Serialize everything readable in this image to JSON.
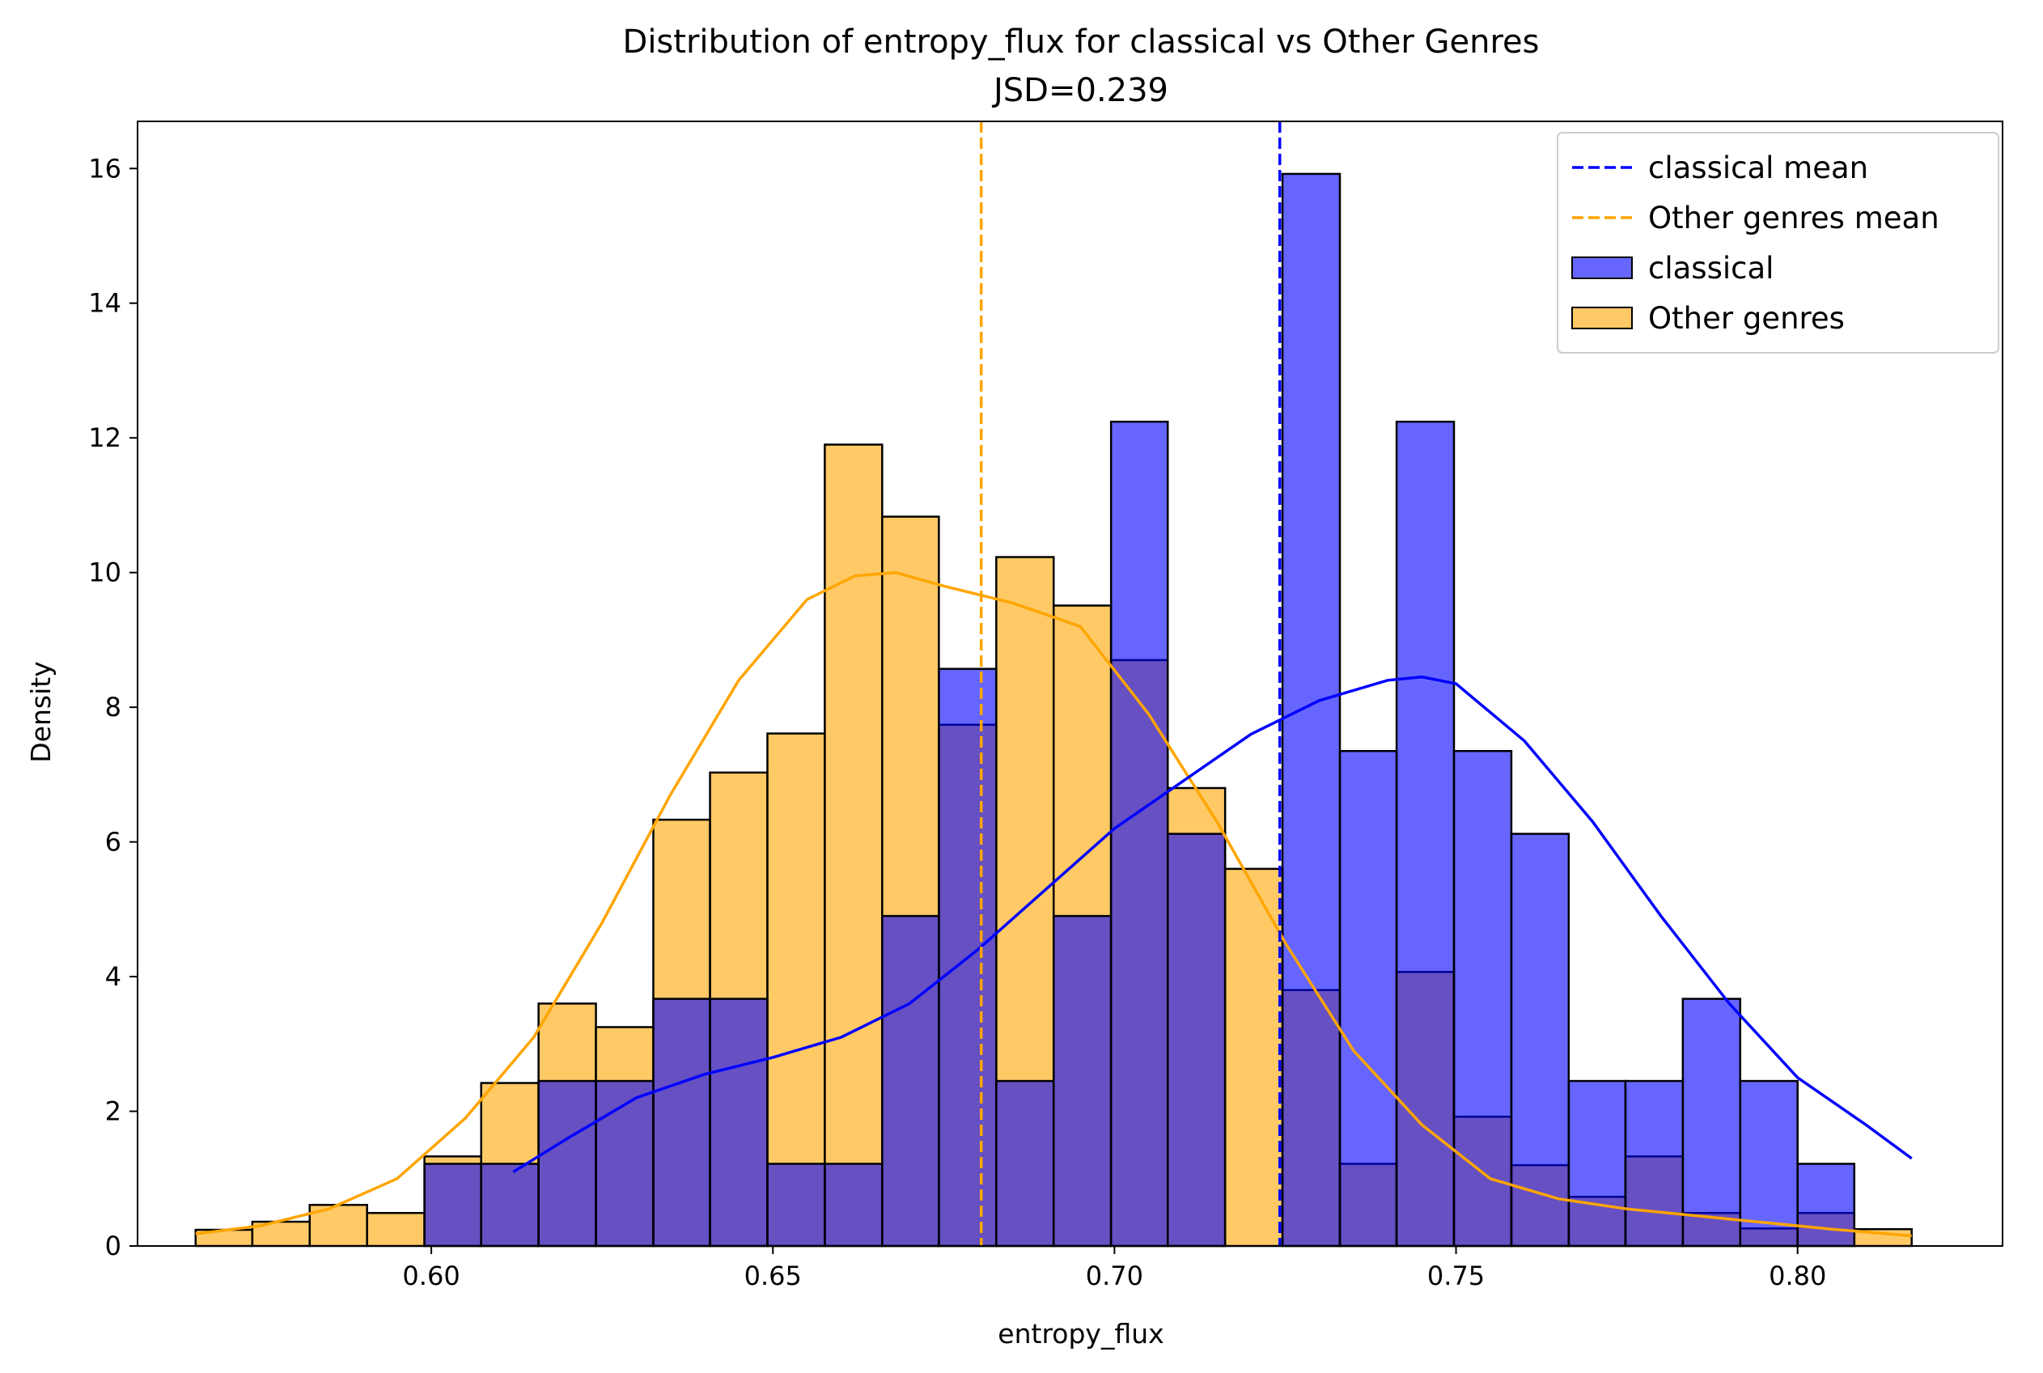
{
  "chart_data": {
    "type": "bar",
    "title": "Distribution of entropy_flux for classical vs Other Genres",
    "subtitle": "JSD=0.239",
    "xlabel": "entropy_flux",
    "ylabel": "Density",
    "xlim": [
      0.557,
      0.83
    ],
    "ylim": [
      0,
      16.7
    ],
    "xticks": [
      0.6,
      0.65,
      0.7,
      0.75,
      0.8
    ],
    "xtick_labels": [
      "0.60",
      "0.65",
      "0.70",
      "0.75",
      "0.80"
    ],
    "yticks": [
      0,
      2,
      4,
      6,
      8,
      10,
      12,
      14,
      16
    ],
    "ytick_labels": [
      "0",
      "2",
      "4",
      "6",
      "8",
      "10",
      "12",
      "14",
      "16"
    ],
    "grid": false,
    "legend_position": "top-right",
    "colors": {
      "classical": "#0000ff",
      "other": "#ffa500",
      "classical_fill": "#6666ff",
      "other_fill": "#ffc966",
      "overlap_fill": "#bf8766",
      "edge": "#000000"
    },
    "legend": [
      {
        "label": "classical mean",
        "kind": "dashed-line",
        "color": "#0000ff"
      },
      {
        "label": "Other genres mean",
        "kind": "dashed-line",
        "color": "#ffa500"
      },
      {
        "label": "classical",
        "kind": "patch",
        "color": "#6666ff"
      },
      {
        "label": "Other genres",
        "kind": "patch",
        "color": "#ffc966"
      }
    ],
    "bin_edges": [
      0.5655,
      0.5738,
      0.5822,
      0.5906,
      0.599,
      0.6073,
      0.6157,
      0.6241,
      0.6325,
      0.6408,
      0.6492,
      0.6576,
      0.666,
      0.6743,
      0.6827,
      0.6911,
      0.6995,
      0.7078,
      0.7162,
      0.7246,
      0.733,
      0.7413,
      0.7497,
      0.7581,
      0.7665,
      0.7748,
      0.7832,
      0.7916,
      0.8,
      0.8083,
      0.8167
    ],
    "series": [
      {
        "name": "classical",
        "values": [
          0,
          0,
          0,
          0,
          1.22,
          1.22,
          2.45,
          2.45,
          3.67,
          3.67,
          1.22,
          1.22,
          4.9,
          8.57,
          2.45,
          4.9,
          12.24,
          6.12,
          0,
          15.92,
          7.35,
          12.24,
          7.35,
          6.12,
          2.45,
          2.45,
          3.67,
          2.45,
          1.22,
          0
        ],
        "mean": 0.7242,
        "kde": {
          "x": [
            0.612,
            0.62,
            0.63,
            0.64,
            0.65,
            0.66,
            0.67,
            0.68,
            0.69,
            0.7,
            0.71,
            0.72,
            0.73,
            0.74,
            0.745,
            0.75,
            0.76,
            0.77,
            0.78,
            0.79,
            0.8,
            0.81,
            0.8167
          ],
          "y": [
            1.1,
            1.6,
            2.2,
            2.55,
            2.8,
            3.1,
            3.6,
            4.4,
            5.3,
            6.2,
            6.9,
            7.6,
            8.1,
            8.4,
            8.45,
            8.35,
            7.5,
            6.3,
            4.9,
            3.6,
            2.5,
            1.8,
            1.3
          ]
        }
      },
      {
        "name": "Other genres",
        "values": [
          0.24,
          0.36,
          0.61,
          0.49,
          1.33,
          2.42,
          3.6,
          3.25,
          6.33,
          7.03,
          7.61,
          11.9,
          10.83,
          7.74,
          10.23,
          9.51,
          8.7,
          6.8,
          5.6,
          3.8,
          1.22,
          4.07,
          1.92,
          1.2,
          0.73,
          1.33,
          0.49,
          0.26,
          0.49,
          0.25
        ],
        "mean": 0.6805,
        "kde": {
          "x": [
            0.5655,
            0.575,
            0.585,
            0.595,
            0.605,
            0.615,
            0.625,
            0.635,
            0.645,
            0.655,
            0.662,
            0.668,
            0.675,
            0.685,
            0.695,
            0.705,
            0.715,
            0.725,
            0.735,
            0.745,
            0.755,
            0.765,
            0.775,
            0.785,
            0.795,
            0.805,
            0.8167
          ],
          "y": [
            0.18,
            0.3,
            0.55,
            1.0,
            1.9,
            3.1,
            4.8,
            6.7,
            8.4,
            9.6,
            9.95,
            10.0,
            9.8,
            9.55,
            9.2,
            7.9,
            6.3,
            4.5,
            2.9,
            1.8,
            1.0,
            0.7,
            0.55,
            0.45,
            0.35,
            0.25,
            0.15
          ]
        }
      }
    ]
  }
}
